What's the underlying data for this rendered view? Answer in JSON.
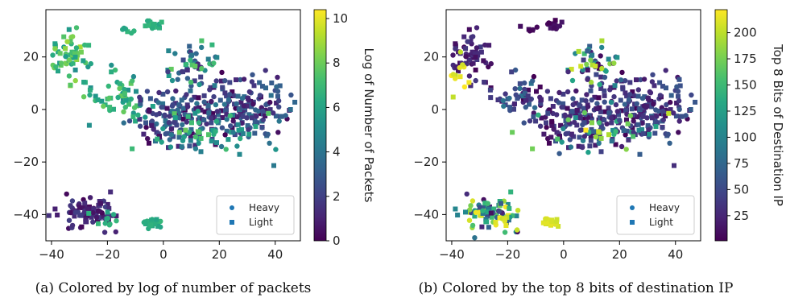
{
  "chart_data": [
    {
      "type": "scatter",
      "caption": "(a) Colored by log of number of packets",
      "xticks": [
        -40,
        -20,
        0,
        20,
        40
      ],
      "yticks": [
        -40,
        -20,
        0,
        20
      ],
      "xlim": [
        -42,
        49
      ],
      "ylim": [
        -50,
        38
      ],
      "colorbar": {
        "label": "Log of Number of Packets",
        "min": 0,
        "max": 10.4,
        "ticks": [
          "0",
          "2",
          "4",
          "6",
          "8",
          "10"
        ],
        "tickValues": [
          0,
          2,
          4,
          6,
          8,
          10
        ]
      },
      "legend": {
        "placement": "lower-right",
        "entries": [
          "Heavy",
          "Light"
        ]
      },
      "clusters": [
        {
          "cx": -33,
          "cy": 20,
          "sx": 4,
          "sy": 5,
          "n": 60,
          "vmin": 5,
          "vmax": 9
        },
        {
          "cx": -16,
          "cy": 5,
          "sx": 6,
          "sy": 4,
          "n": 55,
          "vmin": 5,
          "vmax": 8
        },
        {
          "cx": 5,
          "cy": -3,
          "sx": 8,
          "sy": 6,
          "n": 140,
          "vmin": 0,
          "vmax": 4
        },
        {
          "cx": 28,
          "cy": 0,
          "sx": 9,
          "sy": 6,
          "n": 170,
          "vmin": 0,
          "vmax": 4
        },
        {
          "cx": 10,
          "cy": 17,
          "sx": 5,
          "sy": 4,
          "n": 50,
          "vmin": 1,
          "vmax": 8
        },
        {
          "cx": 15,
          "cy": -8,
          "sx": 12,
          "sy": 5,
          "n": 60,
          "vmin": 4,
          "vmax": 8
        },
        {
          "cx": -27,
          "cy": -40,
          "sx": 5,
          "sy": 3,
          "n": 80,
          "vmin": 0,
          "vmax": 2
        },
        {
          "cx": -4,
          "cy": -43,
          "sx": 1.4,
          "sy": 0.8,
          "n": 25,
          "vmin": 6,
          "vmax": 7
        },
        {
          "cx": -3,
          "cy": 32,
          "sx": 1.5,
          "sy": 1,
          "n": 18,
          "vmin": 6,
          "vmax": 7
        },
        {
          "cx": -11,
          "cy": 30,
          "sx": 2,
          "sy": 1,
          "n": 6,
          "vmin": 6,
          "vmax": 7
        },
        {
          "cx": -20,
          "cy": -42,
          "sx": 3,
          "sy": 1.5,
          "n": 10,
          "vmin": 6,
          "vmax": 7
        }
      ]
    },
    {
      "type": "scatter",
      "caption": "(b) Colored by the top 8 bits of destination IP",
      "xticks": [
        -40,
        -20,
        0,
        20,
        40
      ],
      "yticks": [
        -40,
        -20,
        0,
        20
      ],
      "xlim": [
        -42,
        49
      ],
      "ylim": [
        -50,
        38
      ],
      "colorbar": {
        "label": "Top 8 Bits of Destination IP",
        "min": 1,
        "max": 222,
        "ticks": [
          "25",
          "50",
          "75",
          "100",
          "125",
          "150",
          "175",
          "200"
        ],
        "tickValues": [
          25,
          50,
          75,
          100,
          125,
          150,
          175,
          200
        ]
      },
      "legend": {
        "placement": "lower-right",
        "entries": [
          "Heavy",
          "Light"
        ]
      },
      "clusters": [
        {
          "cx": -33,
          "cy": 20,
          "sx": 4,
          "sy": 5,
          "n": 60,
          "vmin": 1,
          "vmax": 40
        },
        {
          "cx": -36,
          "cy": 13,
          "sx": 2,
          "sy": 3,
          "n": 12,
          "vmin": 200,
          "vmax": 222
        },
        {
          "cx": -16,
          "cy": 5,
          "sx": 6,
          "sy": 4,
          "n": 55,
          "vmin": 1,
          "vmax": 90
        },
        {
          "cx": 5,
          "cy": -3,
          "sx": 8,
          "sy": 6,
          "n": 140,
          "vmin": 1,
          "vmax": 60
        },
        {
          "cx": 28,
          "cy": 0,
          "sx": 9,
          "sy": 6,
          "n": 170,
          "vmin": 1,
          "vmax": 70
        },
        {
          "cx": 10,
          "cy": 17,
          "sx": 5,
          "sy": 4,
          "n": 50,
          "vmin": 1,
          "vmax": 210
        },
        {
          "cx": 15,
          "cy": -8,
          "sx": 12,
          "sy": 5,
          "n": 60,
          "vmin": 20,
          "vmax": 222
        },
        {
          "cx": -27,
          "cy": -40,
          "sx": 5,
          "sy": 3,
          "n": 80,
          "vmin": 1,
          "vmax": 222
        },
        {
          "cx": -4,
          "cy": -43,
          "sx": 1.4,
          "sy": 0.8,
          "n": 25,
          "vmin": 205,
          "vmax": 215
        },
        {
          "cx": -3,
          "cy": 32,
          "sx": 1.5,
          "sy": 1,
          "n": 18,
          "vmin": 1,
          "vmax": 15
        },
        {
          "cx": -11,
          "cy": 30,
          "sx": 2,
          "sy": 1,
          "n": 6,
          "vmin": 1,
          "vmax": 15
        },
        {
          "cx": -20,
          "cy": -42,
          "sx": 3,
          "sy": 1.5,
          "n": 10,
          "vmin": 200,
          "vmax": 222
        }
      ]
    }
  ]
}
